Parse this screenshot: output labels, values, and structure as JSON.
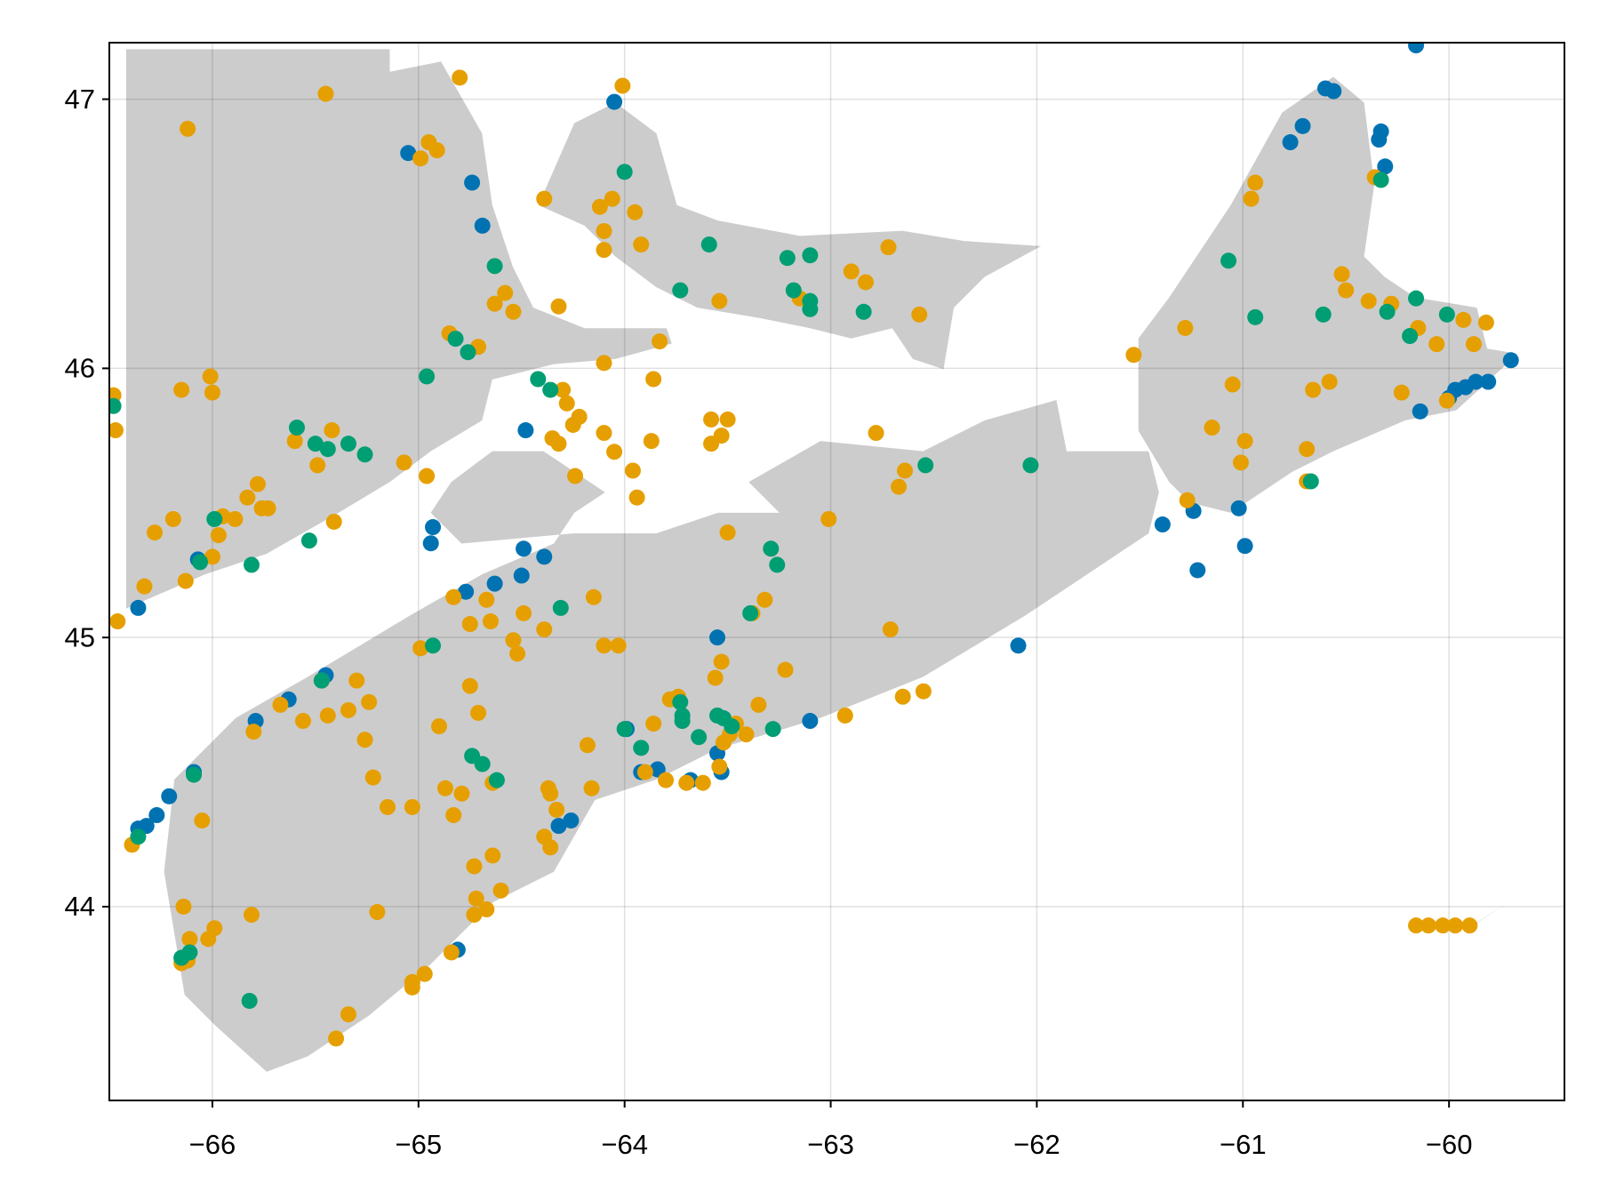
{
  "chart_data": {
    "type": "scatter",
    "xlim": [
      -66.5,
      -59.44
    ],
    "ylim": [
      43.28,
      47.21
    ],
    "xticks": [
      {
        "value": -66,
        "label": "−66"
      },
      {
        "value": -65,
        "label": "−65"
      },
      {
        "value": -64,
        "label": "−64"
      },
      {
        "value": -63,
        "label": "−63"
      },
      {
        "value": -62,
        "label": "−62"
      },
      {
        "value": -61,
        "label": "−61"
      },
      {
        "value": -60,
        "label": "−60"
      }
    ],
    "yticks": [
      44,
      45,
      46,
      47
    ],
    "grid": true,
    "series": [
      {
        "color": "#0072b2",
        "x": [
          -60.16,
          -60.6,
          -60.56,
          -64.05,
          -60.71,
          -60.77,
          -60.33,
          -60.34,
          -60.31,
          -65.05,
          -64.74,
          -64.69,
          -64.48,
          -64.93,
          -64.94,
          -66.07,
          -66.36,
          -64.77,
          -64.63,
          -64.49,
          -64.5,
          -64.39,
          -63.55,
          -65.45,
          -65.79,
          -65.63,
          -66.09,
          -66.21,
          -66.27,
          -66.32,
          -66.36,
          -64.32,
          -64.26,
          -64.81,
          -63.99,
          -63.92,
          -63.84,
          -63.55,
          -63.53,
          -63.68,
          -63.1,
          -62.09,
          -61.39,
          -61.24,
          -61.22,
          -61.02,
          -60.99,
          -59.97,
          -59.92,
          -59.87,
          -59.81,
          -60.14,
          -59.7,
          -60.0
        ],
        "values": [
          47.2,
          47.04,
          47.03,
          46.99,
          46.9,
          46.84,
          46.88,
          46.85,
          46.75,
          46.8,
          46.69,
          46.53,
          45.77,
          45.41,
          45.35,
          45.29,
          45.11,
          45.17,
          45.2,
          45.33,
          45.23,
          45.3,
          45.0,
          44.86,
          44.69,
          44.77,
          44.5,
          44.41,
          44.34,
          44.3,
          44.29,
          44.3,
          44.32,
          43.84,
          44.66,
          44.5,
          44.51,
          44.57,
          44.5,
          44.47,
          44.69,
          44.97,
          45.42,
          45.47,
          45.25,
          45.48,
          45.34,
          45.92,
          45.93,
          45.95,
          45.95,
          45.84,
          46.03,
          45.89
        ]
      },
      {
        "color": "#e69f00",
        "x": [
          -64.8,
          -65.45,
          -64.01,
          -66.12,
          -64.95,
          -64.91,
          -64.99,
          -64.39,
          -64.06,
          -64.12,
          -63.95,
          -64.1,
          -64.1,
          -63.92,
          -62.72,
          -62.9,
          -62.83,
          -63.54,
          -63.15,
          -62.57,
          -60.94,
          -60.96,
          -60.36,
          -64.32,
          -64.63,
          -64.54,
          -64.58,
          -64.85,
          -64.71,
          -63.83,
          -64.1,
          -63.86,
          -66.01,
          -66.15,
          -66.0,
          -66.48,
          -66.47,
          -61.53,
          -61.28,
          -61.05,
          -60.52,
          -60.5,
          -60.39,
          -60.28,
          -60.15,
          -60.06,
          -59.93,
          -59.82,
          -59.88,
          -60.23,
          -60.01,
          -60.58,
          -60.66,
          -61.15,
          -60.99,
          -61.01,
          -60.69,
          -60.69,
          -61.27,
          -64.3,
          -64.28,
          -64.22,
          -64.25,
          -64.1,
          -64.35,
          -64.32,
          -64.05,
          -63.87,
          -63.96,
          -63.94,
          -64.24,
          -63.58,
          -63.5,
          -63.53,
          -63.58,
          -62.78,
          -62.64,
          -62.67,
          -63.01,
          -63.5,
          -65.6,
          -65.42,
          -65.49,
          -65.07,
          -64.96,
          -65.78,
          -65.83,
          -65.76,
          -65.73,
          -65.95,
          -65.89,
          -65.97,
          -66.19,
          -66.28,
          -66.0,
          -66.13,
          -66.33,
          -66.46,
          -65.41,
          -64.83,
          -64.67,
          -64.65,
          -64.75,
          -64.49,
          -64.39,
          -64.54,
          -64.52,
          -64.99,
          -64.15,
          -64.1,
          -64.03,
          -63.32,
          -63.38,
          -62.71,
          -63.22,
          -63.53,
          -63.56,
          -65.3,
          -65.47,
          -65.24,
          -65.34,
          -65.67,
          -65.56,
          -65.44,
          -65.26,
          -65.8,
          -64.75,
          -64.71,
          -64.9,
          -63.78,
          -63.74,
          -63.35,
          -62.93,
          -62.65,
          -62.55,
          -64.18,
          -63.86,
          -63.46,
          -63.41,
          -65.22,
          -65.15,
          -65.03,
          -64.87,
          -64.79,
          -64.83,
          -64.64,
          -64.37,
          -64.36,
          -64.33,
          -64.16,
          -66.05,
          -64.39,
          -64.36,
          -64.64,
          -64.73,
          -64.6,
          -64.72,
          -64.67,
          -64.73,
          -65.2,
          -65.81,
          -66.14,
          -65.99,
          -66.02,
          -66.11,
          -66.12,
          -66.15,
          -64.84,
          -64.97,
          -65.03,
          -65.03,
          -65.34,
          -65.4,
          -66.39,
          -60.16,
          -60.1,
          -60.03,
          -59.97,
          -59.9,
          -63.62,
          -63.7,
          -63.8,
          -63.9,
          -63.54,
          -63.52,
          -63.49
        ],
        "values": [
          47.08,
          47.02,
          47.05,
          46.89,
          46.84,
          46.81,
          46.78,
          46.63,
          46.63,
          46.6,
          46.58,
          46.51,
          46.44,
          46.46,
          46.45,
          46.36,
          46.32,
          46.25,
          46.26,
          46.2,
          46.69,
          46.63,
          46.71,
          46.23,
          46.24,
          46.21,
          46.28,
          46.13,
          46.08,
          46.1,
          46.02,
          45.96,
          45.97,
          45.92,
          45.91,
          45.9,
          45.77,
          46.05,
          46.15,
          45.94,
          46.35,
          46.29,
          46.25,
          46.24,
          46.15,
          46.09,
          46.18,
          46.17,
          46.09,
          45.91,
          45.88,
          45.95,
          45.92,
          45.78,
          45.73,
          45.65,
          45.7,
          45.58,
          45.51,
          45.92,
          45.87,
          45.82,
          45.79,
          45.76,
          45.74,
          45.72,
          45.69,
          45.73,
          45.62,
          45.52,
          45.6,
          45.81,
          45.81,
          45.75,
          45.72,
          45.76,
          45.62,
          45.56,
          45.44,
          45.39,
          45.73,
          45.77,
          45.64,
          45.65,
          45.6,
          45.57,
          45.52,
          45.48,
          45.48,
          45.45,
          45.44,
          45.38,
          45.44,
          45.39,
          45.3,
          45.21,
          45.19,
          45.06,
          45.43,
          45.15,
          45.14,
          45.06,
          45.05,
          45.09,
          45.03,
          44.99,
          44.94,
          44.96,
          45.15,
          44.97,
          44.97,
          45.14,
          45.09,
          45.03,
          44.88,
          44.91,
          44.85,
          44.84,
          44.84,
          44.76,
          44.73,
          44.75,
          44.69,
          44.71,
          44.62,
          44.65,
          44.82,
          44.72,
          44.67,
          44.77,
          44.78,
          44.75,
          44.71,
          44.78,
          44.8,
          44.6,
          44.68,
          44.68,
          44.64,
          44.48,
          44.37,
          44.37,
          44.44,
          44.42,
          44.34,
          44.46,
          44.44,
          44.42,
          44.36,
          44.44,
          44.32,
          44.26,
          44.22,
          44.19,
          44.15,
          44.06,
          44.03,
          43.99,
          43.97,
          43.98,
          43.97,
          44.0,
          43.92,
          43.88,
          43.88,
          43.8,
          43.79,
          43.83,
          43.75,
          43.72,
          43.7,
          43.6,
          43.51,
          44.23,
          43.93,
          43.93,
          43.93,
          43.93,
          43.93,
          44.46,
          44.46,
          44.47,
          44.5,
          44.52,
          44.61,
          44.64
        ]
      },
      {
        "color": "#009e73",
        "x": [
          -64.0,
          -63.59,
          -64.63,
          -63.21,
          -63.1,
          -63.18,
          -63.1,
          -63.1,
          -63.73,
          -62.84,
          -61.07,
          -60.33,
          -60.94,
          -60.61,
          -60.16,
          -60.3,
          -60.19,
          -60.01,
          -64.82,
          -64.76,
          -64.96,
          -64.42,
          -64.36,
          -66.48,
          -65.59,
          -65.5,
          -65.44,
          -65.34,
          -65.26,
          -65.99,
          -65.53,
          -65.81,
          -66.06,
          -62.54,
          -62.03,
          -63.29,
          -63.26,
          -63.39,
          -64.31,
          -64.93,
          -65.47,
          -63.73,
          -63.72,
          -63.72,
          -63.64,
          -63.55,
          -63.52,
          -63.48,
          -63.28,
          -64.0,
          -63.92,
          -64.74,
          -64.69,
          -64.62,
          -66.09,
          -66.36,
          -66.11,
          -66.15,
          -65.82,
          -60.67
        ],
        "values": [
          46.73,
          46.46,
          46.38,
          46.41,
          46.42,
          46.29,
          46.22,
          46.25,
          46.29,
          46.21,
          46.4,
          46.7,
          46.19,
          46.2,
          46.26,
          46.21,
          46.12,
          46.2,
          46.11,
          46.06,
          45.97,
          45.96,
          45.92,
          45.86,
          45.78,
          45.72,
          45.7,
          45.72,
          45.68,
          45.44,
          45.36,
          45.27,
          45.28,
          45.64,
          45.64,
          45.33,
          45.27,
          45.09,
          45.11,
          44.97,
          44.84,
          44.76,
          44.71,
          44.69,
          44.63,
          44.71,
          44.7,
          44.67,
          44.66,
          44.66,
          44.59,
          44.56,
          44.53,
          44.47,
          44.49,
          44.26,
          43.83,
          43.81,
          43.65,
          45.58
        ]
      }
    ]
  }
}
